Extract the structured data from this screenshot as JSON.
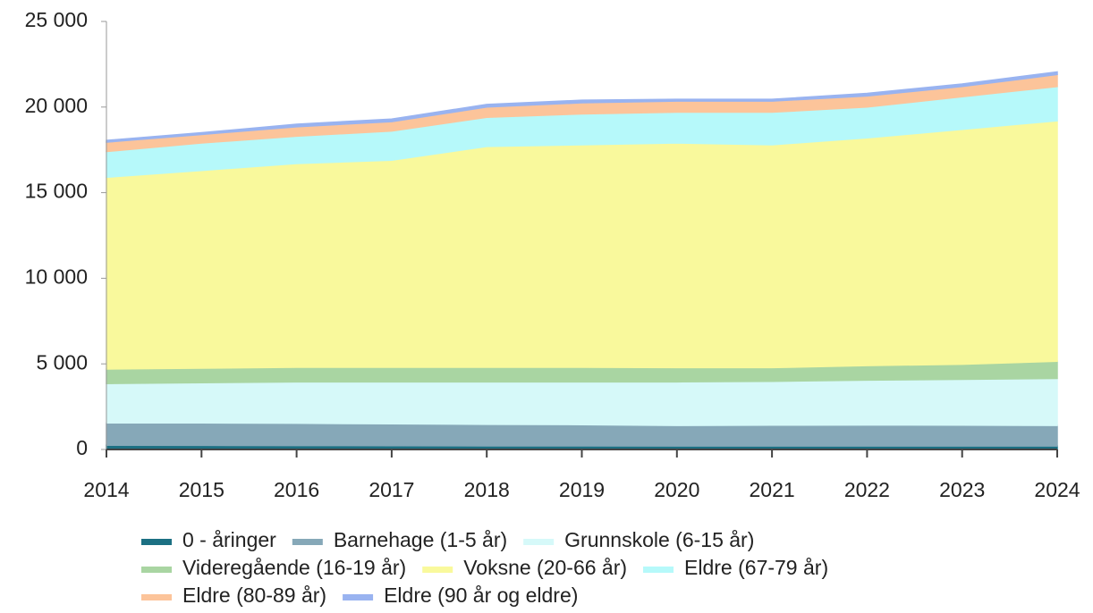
{
  "chart_data": {
    "type": "stacked_area",
    "categories": [
      "2014",
      "2015",
      "2016",
      "2017",
      "2018",
      "2019",
      "2020",
      "2021",
      "2022",
      "2023",
      "2024"
    ],
    "series": [
      {
        "name": "0 - åringer",
        "color": "#1c7083",
        "values": [
          250,
          240,
          230,
          220,
          210,
          210,
          200,
          200,
          200,
          200,
          200
        ]
      },
      {
        "name": "Barnehage (1-5 år)",
        "color": "#86a8b8",
        "values": [
          1300,
          1310,
          1300,
          1280,
          1260,
          1240,
          1200,
          1220,
          1230,
          1220,
          1200
        ]
      },
      {
        "name": "Grunnskole (6-15 år)",
        "color": "#d6f9f9",
        "values": [
          2300,
          2350,
          2420,
          2450,
          2480,
          2500,
          2550,
          2560,
          2620,
          2680,
          2750
        ]
      },
      {
        "name": "Videregående (16-19 år)",
        "color": "#a9d5a2",
        "values": [
          850,
          850,
          850,
          850,
          850,
          850,
          830,
          800,
          850,
          880,
          1000
        ]
      },
      {
        "name": "Voksne (20-66 år)",
        "color": "#f9f99c",
        "values": [
          11200,
          11550,
          11900,
          12100,
          12900,
          13000,
          13120,
          13020,
          13300,
          13720,
          14050
        ]
      },
      {
        "name": "Eldre (67-79 år)",
        "color": "#b6f9fa",
        "values": [
          1500,
          1600,
          1600,
          1700,
          1700,
          1800,
          1800,
          1900,
          1800,
          1900,
          2000
        ]
      },
      {
        "name": "Eldre (80-89 år)",
        "color": "#fcc49a",
        "values": [
          550,
          500,
          550,
          550,
          600,
          650,
          650,
          650,
          650,
          600,
          700
        ]
      },
      {
        "name": "Eldre (90 år og eldre)",
        "color": "#99b3f0",
        "values": [
          100,
          100,
          150,
          150,
          150,
          150,
          100,
          100,
          150,
          150,
          150
        ]
      }
    ],
    "ylim": [
      0,
      25000
    ],
    "yticks": [
      0,
      {
        "value": 5000,
        "label": "5 000"
      },
      {
        "value": 10000,
        "label": "10 000"
      },
      {
        "value": 15000,
        "label": "15 000"
      },
      {
        "value": 20000,
        "label": "20 000"
      },
      {
        "value": 25000,
        "label": "25 000"
      }
    ],
    "legend": "bottom"
  }
}
